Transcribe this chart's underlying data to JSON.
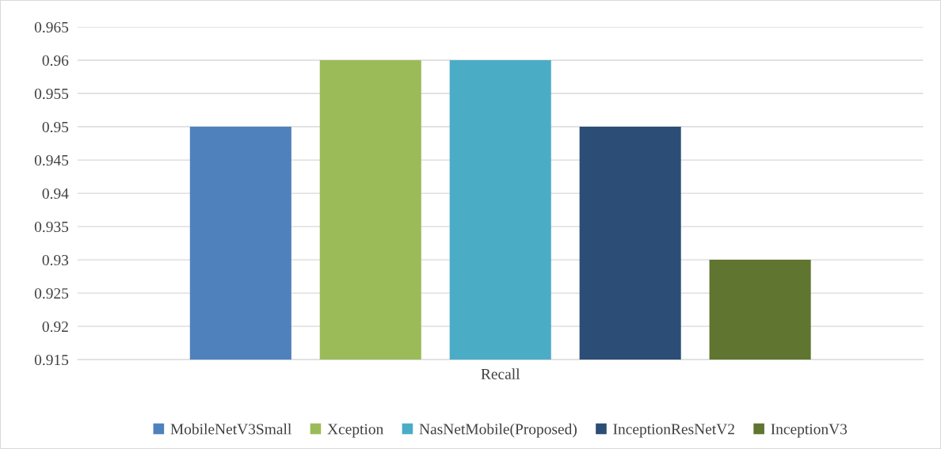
{
  "chart_data": {
    "type": "bar",
    "categories": [
      "Recall"
    ],
    "series": [
      {
        "name": "MobileNetV3Small",
        "color": "#4f81bd",
        "values": [
          0.95
        ]
      },
      {
        "name": "Xception",
        "color": "#9bbb59",
        "values": [
          0.96
        ]
      },
      {
        "name": "NasNetMobile(Proposed)",
        "color": "#4bacc6",
        "values": [
          0.96
        ]
      },
      {
        "name": "InceptionResNetV2",
        "color": "#2c4d75",
        "values": [
          0.95
        ]
      },
      {
        "name": "InceptionV3",
        "color": "#5f7530",
        "values": [
          0.93
        ]
      }
    ],
    "ylim": [
      0.915,
      0.965
    ],
    "yticks": [
      0.915,
      0.92,
      0.925,
      0.93,
      0.935,
      0.94,
      0.945,
      0.95,
      0.955,
      0.96,
      0.965
    ],
    "grid": "y",
    "legend": "bottom"
  }
}
